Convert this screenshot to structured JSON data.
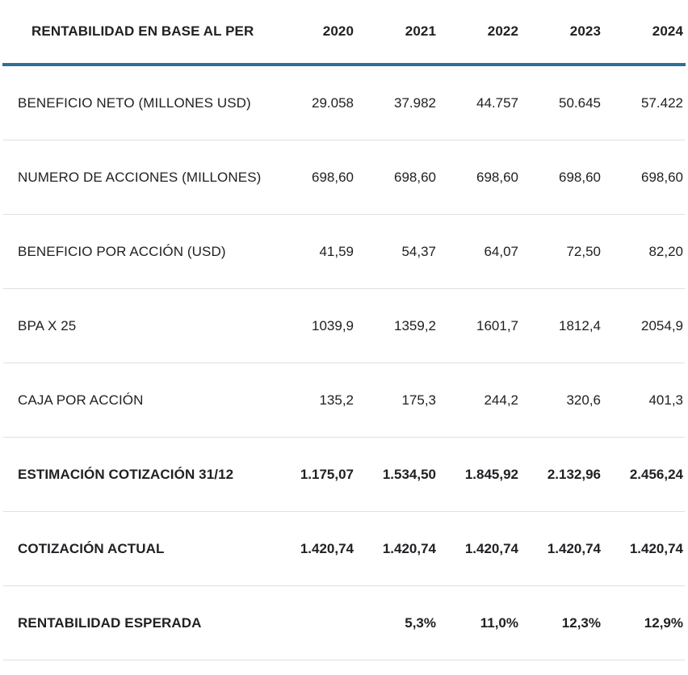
{
  "colors": {
    "accent_line": "#2f6e96",
    "row_divider": "#e0e0e0",
    "text": "#202124",
    "background": "#ffffff"
  },
  "table": {
    "header": {
      "label": "RENTABILIDAD EN BASE AL PER",
      "years": [
        "2020",
        "2021",
        "2022",
        "2023",
        "2024"
      ]
    },
    "rows": [
      {
        "label": "BENEFICIO NETO (MILLONES USD)",
        "values": [
          "29.058",
          "37.982",
          "44.757",
          "50.645",
          "57.422"
        ],
        "emphasis": false
      },
      {
        "label": "NUMERO DE ACCIONES (MILLONES)",
        "values": [
          "698,60",
          "698,60",
          "698,60",
          "698,60",
          "698,60"
        ],
        "emphasis": false
      },
      {
        "label": "BENEFICIO POR ACCIÓN (USD)",
        "values": [
          "41,59",
          "54,37",
          "64,07",
          "72,50",
          "82,20"
        ],
        "emphasis": false
      },
      {
        "label": "BPA X 25",
        "values": [
          "1039,9",
          "1359,2",
          "1601,7",
          "1812,4",
          "2054,9"
        ],
        "emphasis": false
      },
      {
        "label": "CAJA POR ACCIÓN",
        "values": [
          "135,2",
          "175,3",
          "244,2",
          "320,6",
          "401,3"
        ],
        "emphasis": false
      },
      {
        "label": "ESTIMACIÓN COTIZACIÓN 31/12",
        "values": [
          "1.175,07",
          "1.534,50",
          "1.845,92",
          "2.132,96",
          "2.456,24"
        ],
        "emphasis": true
      },
      {
        "label": "COTIZACIÓN ACTUAL",
        "values": [
          "1.420,74",
          "1.420,74",
          "1.420,74",
          "1.420,74",
          "1.420,74"
        ],
        "emphasis": true
      },
      {
        "label": "RENTABILIDAD ESPERADA",
        "values": [
          "",
          "5,3%",
          "11,0%",
          "12,3%",
          "12,9%"
        ],
        "emphasis": true
      }
    ]
  }
}
